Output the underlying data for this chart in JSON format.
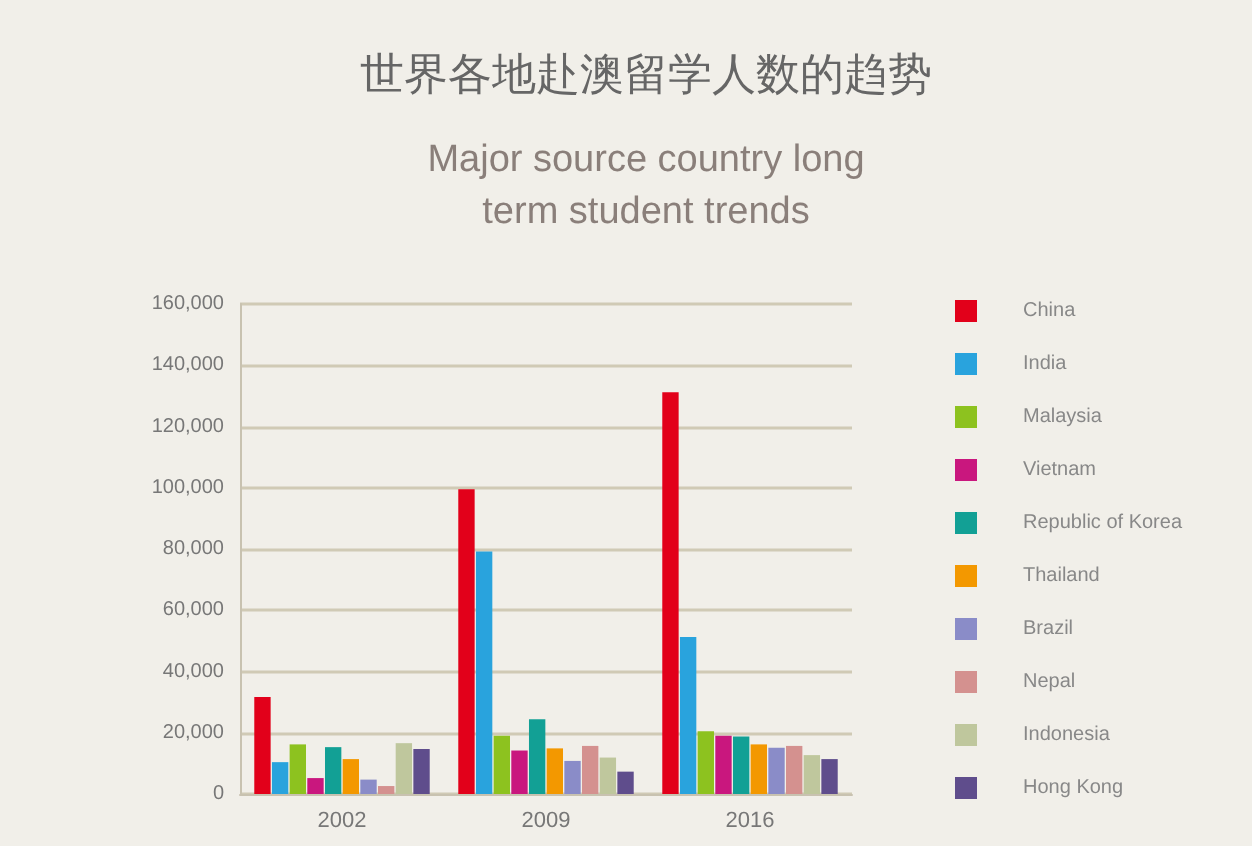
{
  "chart_data": {
    "type": "bar",
    "title": "世界各地赴澳留学人数的趋势",
    "subtitle": "Major source country long\nterm student trends",
    "categories": [
      "2002",
      "2009",
      "2016"
    ],
    "series": [
      {
        "name": "China",
        "color": "#e2001a",
        "values": [
          31700,
          99500,
          131200
        ]
      },
      {
        "name": "India",
        "color": "#29a3dd",
        "values": [
          10400,
          79200,
          51300
        ]
      },
      {
        "name": "Malaysia",
        "color": "#8dc21f",
        "values": [
          16200,
          19000,
          20500
        ]
      },
      {
        "name": "Vietnam",
        "color": "#c9177e",
        "values": [
          5200,
          14200,
          19000
        ]
      },
      {
        "name": "Republic of Korea",
        "color": "#12a095",
        "values": [
          15300,
          24400,
          18800
        ]
      },
      {
        "name": "Thailand",
        "color": "#f39800",
        "values": [
          11400,
          14900,
          16200
        ]
      },
      {
        "name": "Brazil",
        "color": "#8a8cc8",
        "values": [
          4700,
          10800,
          15100
        ]
      },
      {
        "name": "Nepal",
        "color": "#d4918f",
        "values": [
          2600,
          15700,
          15700
        ]
      },
      {
        "name": "Indonesia",
        "color": "#bfc79d",
        "values": [
          16600,
          11900,
          12700
        ]
      },
      {
        "name": "Hong Kong",
        "color": "#5f4d8c",
        "values": [
          14700,
          7300,
          11400
        ]
      }
    ],
    "ylim": [
      0,
      160000
    ],
    "yticks": [
      0,
      {
        "value": 20000,
        "label": "20,000"
      },
      {
        "value": 40000,
        "label": "40,000"
      },
      {
        "value": 60000,
        "label": "60,000"
      },
      {
        "value": 80000,
        "label": "80,000"
      },
      {
        "value": 100000,
        "label": "100,000"
      },
      {
        "value": 120000,
        "label": "120,000"
      },
      {
        "value": 140000,
        "label": "140,000"
      },
      {
        "value": 160000,
        "label": "160,000"
      }
    ],
    "grid": "y",
    "legend": "right"
  }
}
